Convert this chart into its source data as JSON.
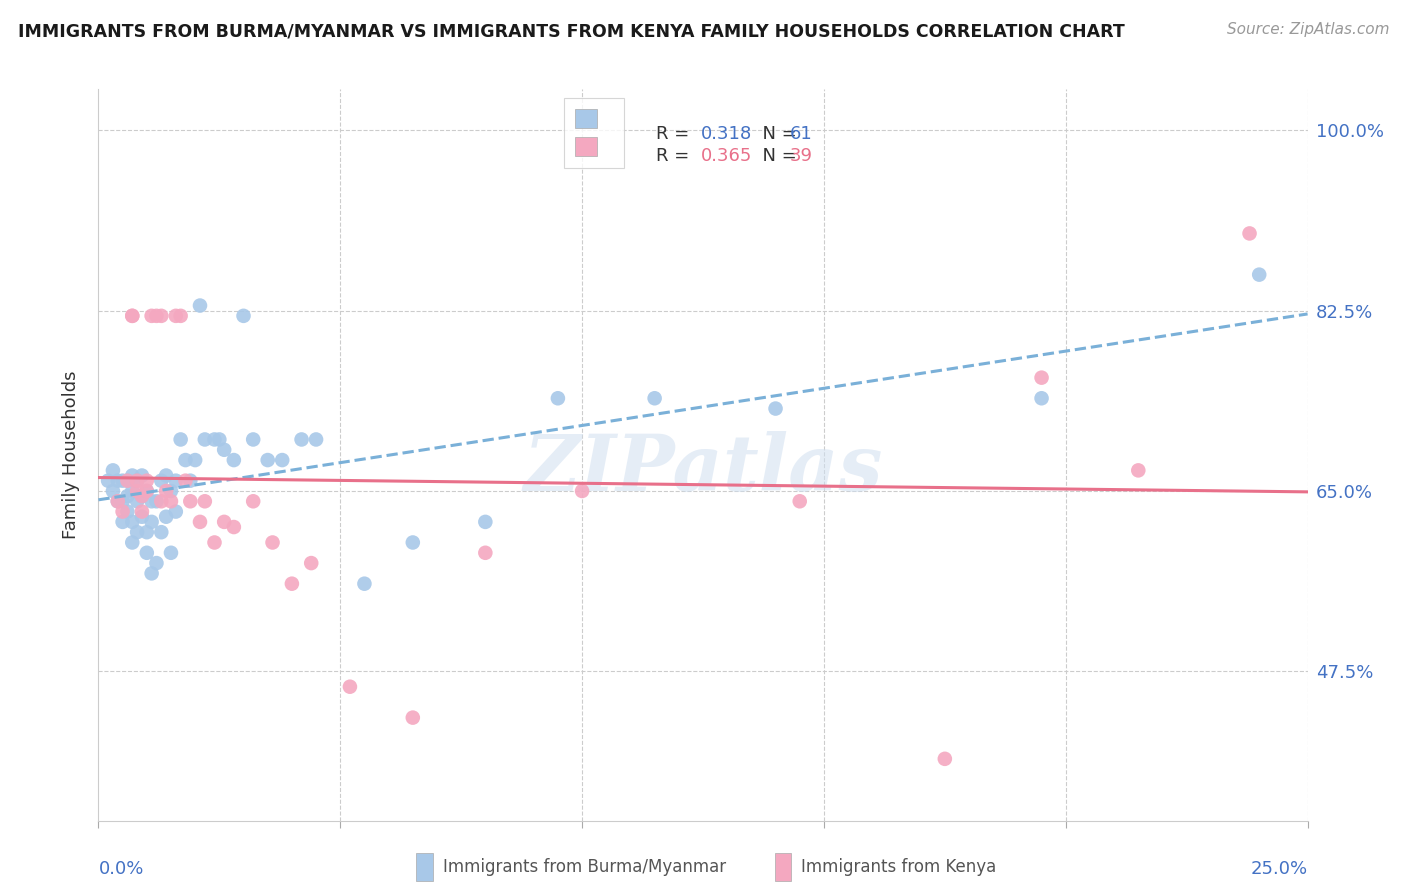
{
  "title": "IMMIGRANTS FROM BURMA/MYANMAR VS IMMIGRANTS FROM KENYA FAMILY HOUSEHOLDS CORRELATION CHART",
  "source": "Source: ZipAtlas.com",
  "ylabel": "Family Households",
  "ytick_vals": [
    0.475,
    0.65,
    0.825,
    1.0
  ],
  "ytick_labels": [
    "47.5%",
    "65.0%",
    "82.5%",
    "100.0%"
  ],
  "xlim": [
    0.0,
    0.25
  ],
  "ylim": [
    0.33,
    1.04
  ],
  "R_burma": 0.318,
  "N_burma": 61,
  "R_kenya": 0.365,
  "N_kenya": 39,
  "color_burma": "#a8c8e8",
  "color_kenya": "#f4a8c0",
  "color_burma_line": "#7ab0d8",
  "color_kenya_line": "#e8708a",
  "color_axis_text": "#4472c4",
  "watermark_color": "#d0dff0",
  "burma_x": [
    0.002,
    0.003,
    0.003,
    0.004,
    0.004,
    0.005,
    0.005,
    0.005,
    0.006,
    0.006,
    0.006,
    0.007,
    0.007,
    0.007,
    0.007,
    0.008,
    0.008,
    0.008,
    0.009,
    0.009,
    0.009,
    0.01,
    0.01,
    0.01,
    0.011,
    0.011,
    0.011,
    0.012,
    0.012,
    0.013,
    0.013,
    0.014,
    0.014,
    0.015,
    0.015,
    0.016,
    0.016,
    0.017,
    0.018,
    0.019,
    0.02,
    0.021,
    0.022,
    0.024,
    0.025,
    0.026,
    0.028,
    0.03,
    0.032,
    0.035,
    0.038,
    0.042,
    0.045,
    0.055,
    0.065,
    0.08,
    0.095,
    0.115,
    0.14,
    0.195,
    0.24
  ],
  "burma_y": [
    0.66,
    0.65,
    0.67,
    0.64,
    0.66,
    0.62,
    0.64,
    0.66,
    0.63,
    0.645,
    0.66,
    0.6,
    0.62,
    0.65,
    0.665,
    0.61,
    0.64,
    0.66,
    0.625,
    0.645,
    0.665,
    0.59,
    0.61,
    0.65,
    0.57,
    0.62,
    0.64,
    0.58,
    0.64,
    0.61,
    0.66,
    0.625,
    0.665,
    0.59,
    0.65,
    0.63,
    0.66,
    0.7,
    0.68,
    0.66,
    0.68,
    0.83,
    0.7,
    0.7,
    0.7,
    0.69,
    0.68,
    0.82,
    0.7,
    0.68,
    0.68,
    0.7,
    0.7,
    0.56,
    0.6,
    0.62,
    0.74,
    0.74,
    0.73,
    0.74,
    0.86
  ],
  "kenya_x": [
    0.004,
    0.005,
    0.006,
    0.007,
    0.007,
    0.008,
    0.008,
    0.009,
    0.009,
    0.01,
    0.01,
    0.011,
    0.012,
    0.013,
    0.013,
    0.014,
    0.015,
    0.016,
    0.017,
    0.018,
    0.019,
    0.021,
    0.022,
    0.024,
    0.026,
    0.028,
    0.032,
    0.036,
    0.04,
    0.044,
    0.052,
    0.065,
    0.08,
    0.1,
    0.145,
    0.175,
    0.195,
    0.215,
    0.238
  ],
  "kenya_y": [
    0.64,
    0.63,
    0.66,
    0.82,
    0.82,
    0.65,
    0.66,
    0.63,
    0.645,
    0.65,
    0.66,
    0.82,
    0.82,
    0.82,
    0.64,
    0.65,
    0.64,
    0.82,
    0.82,
    0.66,
    0.64,
    0.62,
    0.64,
    0.6,
    0.62,
    0.615,
    0.64,
    0.6,
    0.56,
    0.58,
    0.46,
    0.43,
    0.59,
    0.65,
    0.64,
    0.39,
    0.76,
    0.67,
    0.9
  ]
}
